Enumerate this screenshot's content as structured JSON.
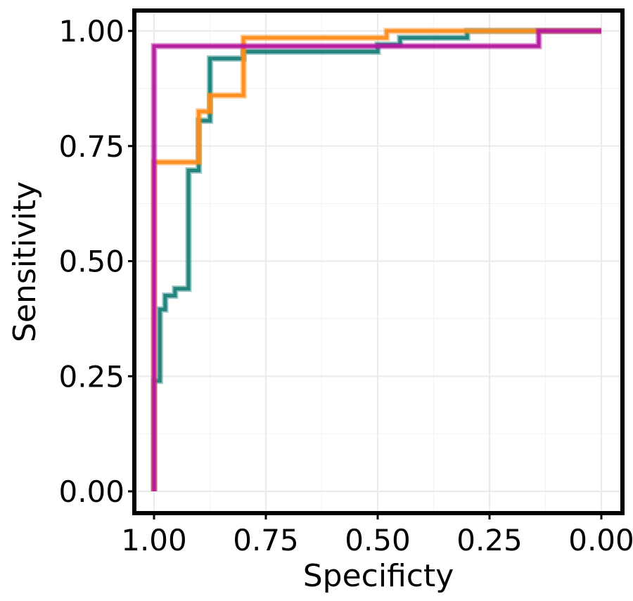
{
  "chart_data": {
    "type": "line",
    "title": "",
    "xlabel": "Specificty",
    "ylabel": "Sensitivity",
    "xlim": [
      1.0,
      0.0
    ],
    "ylim": [
      0.0,
      1.0
    ],
    "x_reversed": true,
    "grid": true,
    "legend": "none",
    "x_ticks": [
      "1.00",
      "0.75",
      "0.50",
      "0.25",
      "0.00"
    ],
    "y_ticks": [
      "0.00",
      "0.25",
      "0.50",
      "0.75",
      "1.00"
    ],
    "x_tick_values": [
      1.0,
      0.75,
      0.5,
      0.25,
      0.0
    ],
    "y_tick_values": [
      0.0,
      0.25,
      0.5,
      0.75,
      1.0
    ],
    "series": [
      {
        "color": "#1a7f7a",
        "step": true,
        "specificity": [
          1.0,
          1.0,
          0.987,
          0.987,
          0.975,
          0.975,
          0.953,
          0.953,
          0.923,
          0.923,
          0.9,
          0.9,
          0.875,
          0.875,
          0.8,
          0.8,
          0.5,
          0.5,
          0.45,
          0.45,
          0.3,
          0.3,
          0.0
        ],
        "sensitivity": [
          0.0,
          0.24,
          0.24,
          0.395,
          0.395,
          0.425,
          0.425,
          0.44,
          0.44,
          0.697,
          0.697,
          0.805,
          0.805,
          0.94,
          0.94,
          0.955,
          0.955,
          0.97,
          0.97,
          0.985,
          0.985,
          1.0,
          1.0
        ]
      },
      {
        "color": "#ff8c1a",
        "step": true,
        "specificity": [
          1.0,
          1.0,
          0.9,
          0.9,
          0.875,
          0.875,
          0.8,
          0.8,
          0.48,
          0.48,
          0.0
        ],
        "sensitivity": [
          0.0,
          0.715,
          0.715,
          0.825,
          0.825,
          0.86,
          0.86,
          0.985,
          0.985,
          1.0,
          1.0
        ]
      },
      {
        "color": "#b5179e",
        "step": true,
        "specificity": [
          1.0,
          1.0,
          0.14,
          0.14,
          0.0
        ],
        "sensitivity": [
          0.0,
          0.967,
          0.967,
          1.0,
          1.0
        ]
      }
    ]
  }
}
